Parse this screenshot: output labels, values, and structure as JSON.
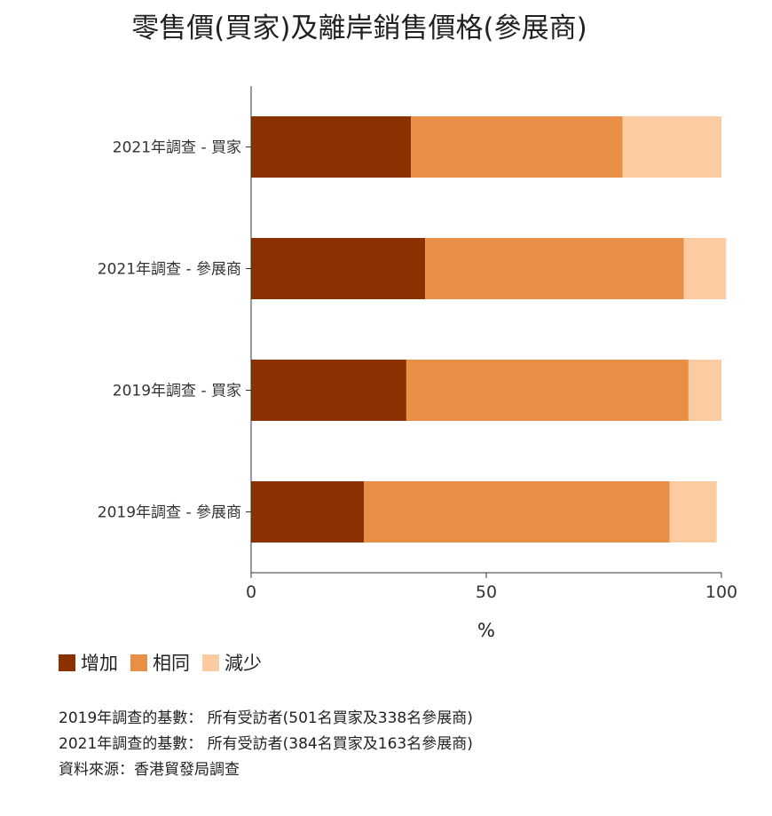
{
  "chart_data": {
    "type": "bar",
    "orientation": "horizontal",
    "stacked": true,
    "title": "零售價(買家)及離岸銷售價格(參展商)",
    "xlabel": "%",
    "ylabel": "",
    "xlim": [
      0,
      100
    ],
    "xticks": [
      "0",
      "50",
      "100"
    ],
    "grid": false,
    "legend_position": "bottom-left",
    "categories": [
      "2021年調查 - 買家",
      "2021年調查 - 參展商",
      "2019年調查 - 買家",
      "2019年調查 - 參展商"
    ],
    "series": [
      {
        "name": "增加",
        "color": "#8b3000",
        "values": [
          34,
          37,
          33,
          24
        ]
      },
      {
        "name": "相同",
        "color": "#e88f45",
        "values": [
          45,
          55,
          60,
          65
        ]
      },
      {
        "name": "減少",
        "color": "#fdcba2",
        "values": [
          21,
          9,
          7,
          10
        ]
      }
    ]
  },
  "notes": [
    "2019年調查的基數： 所有受訪者(501名買家及338名參展商)",
    "2021年調查的基數： 所有受訪者(384名買家及163名參展商)",
    "資料來源：香港貿發局調查"
  ]
}
